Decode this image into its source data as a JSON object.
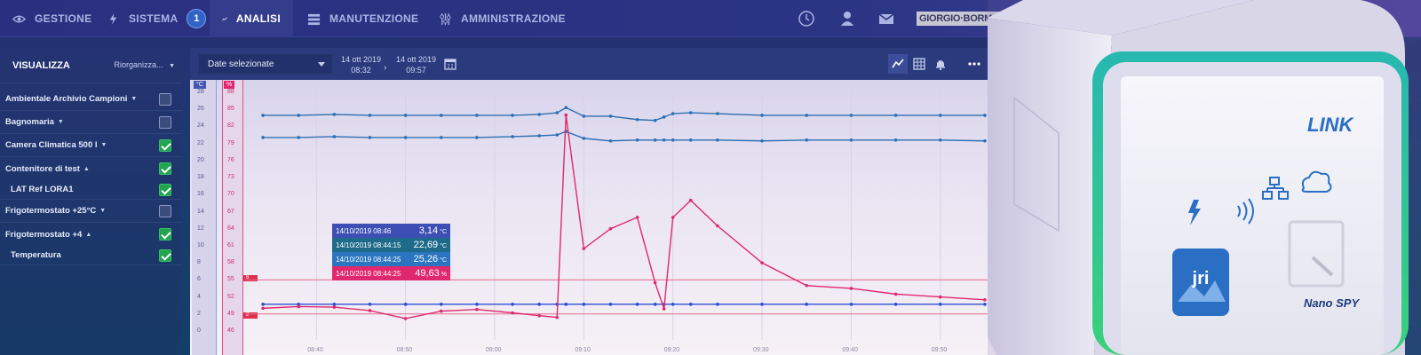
{
  "nav": {
    "items": [
      {
        "label": "GESTIONE",
        "icon": "eye-icon"
      },
      {
        "label": "SISTEMA",
        "icon": "lightning-icon",
        "badge": "1"
      },
      {
        "label": "ANALISI",
        "icon": "trend-line-icon",
        "active": true
      },
      {
        "label": "MANUTENZIONE",
        "icon": "list-icon"
      },
      {
        "label": "AMMINISTRAZIONE",
        "icon": "sliders-icon"
      }
    ],
    "right_icons": [
      "clock-icon",
      "user-icon",
      "mail-icon"
    ],
    "brand": "GIORGIO·BORMAC"
  },
  "sidebar": {
    "title": "VISUALIZZA",
    "reorder_label": "Riorganizza...",
    "items": [
      {
        "label": "Ambientale Archivio Campioni",
        "expanded": false,
        "checked": false,
        "sub": false
      },
      {
        "label": "Bagnomaria",
        "expanded": false,
        "checked": false,
        "sub": false
      },
      {
        "label": "Camera Climatica 500 l",
        "expanded": false,
        "checked": true,
        "sub": false
      },
      {
        "label": "Contenitore di test",
        "expanded": true,
        "checked": true,
        "sub": false
      },
      {
        "label": "LAT Ref LORA1",
        "checked": true,
        "sub": true
      },
      {
        "label": "Frigotermostato +25°C",
        "expanded": false,
        "checked": false,
        "sub": false
      },
      {
        "label": "Frigotermostato +4",
        "expanded": true,
        "checked": true,
        "sub": false
      },
      {
        "label": "Temperatura",
        "checked": true,
        "sub": true
      }
    ]
  },
  "toolbar": {
    "date_select": "Date selezionate",
    "from_date": "14 ott 2019",
    "from_time": "08:32",
    "to_date": "14 ott 2019",
    "to_time": "09:57",
    "icons": [
      "calendar-icon",
      "line-chart-icon",
      "table-icon",
      "bell-icon",
      "more-icon"
    ]
  },
  "chart_data": {
    "type": "line",
    "units": {
      "left": "°C",
      "right": "%"
    },
    "y_left_ticks": [
      "28",
      "26",
      "24",
      "22",
      "20",
      "18",
      "16",
      "14",
      "12",
      "10",
      "8",
      "6",
      "4",
      "2",
      "0"
    ],
    "y_right_ticks": [
      "88",
      "85",
      "82",
      "79",
      "76",
      "73",
      "70",
      "67",
      "64",
      "61",
      "58",
      "55",
      "52",
      "49",
      "46"
    ],
    "x_ticks": [
      "08:40",
      "08:50",
      "09:00",
      "09:10",
      "09:20",
      "09:30",
      "09:40",
      "09:50"
    ],
    "limit_labels": [
      "6",
      "2"
    ],
    "x": [
      "08:34",
      "08:38",
      "08:42",
      "08:46",
      "08:50",
      "08:54",
      "08:58",
      "09:02",
      "09:05",
      "09:07",
      "09:08",
      "09:10",
      "09:13",
      "09:16",
      "09:18",
      "09:19",
      "09:20",
      "09:22",
      "09:25",
      "09:30",
      "09:35",
      "09:40",
      "09:45",
      "09:50",
      "09:55"
    ],
    "series": [
      {
        "color": "#2c6fb3",
        "values": [
          25.3,
          25.3,
          25.4,
          25.3,
          25.3,
          25.3,
          25.3,
          25.3,
          25.4,
          25.6,
          26.2,
          25.2,
          25.2,
          24.8,
          24.7,
          25.1,
          25.5,
          25.6,
          25.5,
          25.3,
          25.3,
          25.3,
          25.3,
          25.3,
          25.3
        ]
      },
      {
        "color": "#2c6fb3",
        "values": [
          22.7,
          22.7,
          22.8,
          22.7,
          22.7,
          22.7,
          22.7,
          22.8,
          22.9,
          23.0,
          23.4,
          22.6,
          22.3,
          22.4,
          22.4,
          22.4,
          22.4,
          22.4,
          22.4,
          22.3,
          22.4,
          22.4,
          22.4,
          22.4,
          22.3
        ]
      },
      {
        "color": "#2d4fd0",
        "values": [
          3.14,
          3.14,
          3.14,
          3.14,
          3.14,
          3.14,
          3.14,
          3.14,
          3.14,
          3.14,
          3.14,
          3.14,
          3.14,
          3.14,
          3.14,
          3.14,
          3.14,
          3.14,
          3.14,
          3.14,
          3.14,
          3.14,
          3.14,
          3.14,
          3.14
        ]
      },
      {
        "color": "#e0286e",
        "values": [
          50.0,
          50.3,
          50.2,
          49.6,
          48.2,
          49.5,
          49.8,
          49.2,
          48.7,
          48.4,
          84.0,
          60.5,
          64.0,
          66.0,
          54.5,
          49.9,
          66.0,
          69.0,
          64.5,
          58.0,
          54.0,
          53.5,
          52.5,
          52.0,
          51.5
        ]
      }
    ],
    "tooltip": [
      {
        "date": "14/10/2019 08:46",
        "value": "3,14",
        "unit": "°C",
        "color": "#3d4fb4"
      },
      {
        "date": "14/10/2019 08:44:15",
        "value": "22,69",
        "unit": "°C",
        "color": "#1e6a8a"
      },
      {
        "date": "14/10/2019 08:44:25",
        "value": "25,26",
        "unit": "°C",
        "color": "#2a74c0"
      },
      {
        "date": "14/10/2019 08:44:25",
        "value": "49,63",
        "unit": "%",
        "color": "#e0286e"
      }
    ]
  },
  "device": {
    "brand": "LINK",
    "model": "Nano SPY",
    "logo": "jri",
    "icons": [
      "lightning-icon",
      "wireless-icon",
      "network-icon",
      "cloud-icon"
    ]
  }
}
